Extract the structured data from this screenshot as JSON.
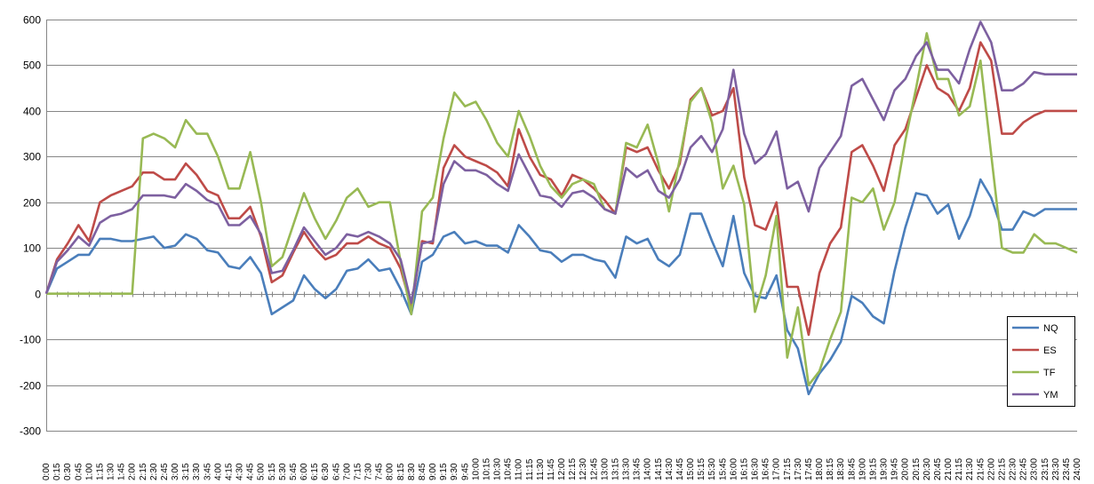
{
  "chart_data": {
    "type": "line",
    "title": "",
    "xlabel": "",
    "ylabel": "",
    "ylim": [
      -300,
      600
    ],
    "yticks": [
      -300,
      -200,
      -100,
      0,
      100,
      200,
      300,
      400,
      500,
      600
    ],
    "grid": "horizontal",
    "legend": "bottom-right",
    "x": [
      "0:00",
      "0:15",
      "0:30",
      "0:45",
      "1:00",
      "1:15",
      "1:30",
      "1:45",
      "2:00",
      "2:15",
      "2:30",
      "2:45",
      "3:00",
      "3:15",
      "3:30",
      "3:45",
      "4:00",
      "4:15",
      "4:30",
      "4:45",
      "5:00",
      "5:15",
      "5:30",
      "5:45",
      "6:00",
      "6:15",
      "6:30",
      "6:45",
      "7:00",
      "7:15",
      "7:30",
      "7:45",
      "8:00",
      "8:15",
      "8:30",
      "8:45",
      "9:00",
      "9:15",
      "9:30",
      "9:45",
      "10:00",
      "10:15",
      "10:30",
      "10:45",
      "11:00",
      "11:15",
      "11:30",
      "11:45",
      "12:00",
      "12:15",
      "12:30",
      "12:45",
      "13:00",
      "13:15",
      "13:30",
      "13:45",
      "14:00",
      "14:15",
      "14:30",
      "14:45",
      "15:00",
      "15:15",
      "15:30",
      "15:45",
      "16:00",
      "16:15",
      "16:30",
      "16:45",
      "17:00",
      "17:15",
      "17:30",
      "17:45",
      "18:00",
      "18:15",
      "18:30",
      "18:45",
      "19:00",
      "19:15",
      "19:30",
      "19:45",
      "20:00",
      "20:15",
      "20:30",
      "20:45",
      "21:00",
      "21:15",
      "21:30",
      "21:45",
      "22:00",
      "22:15",
      "22:30",
      "22:45",
      "23:00",
      "23:15",
      "23:30",
      "23:45",
      "24:00"
    ],
    "xlabels_shown": [
      "0:00",
      "0:15",
      "0:30",
      "0:45",
      "1:00",
      "1:15",
      "1:30",
      "1:45",
      "2:00",
      "2:15",
      "2:30",
      "2:45",
      "3:00",
      "3:15",
      "3:30",
      "3:45",
      "4:00",
      "4:15",
      "4:30",
      "4:45",
      "5:00",
      "5:15",
      "5:30",
      "5:45",
      "6:00",
      "6:15",
      "6:30",
      "6:45",
      "7:00",
      "7:15",
      "7:30",
      "7:45",
      "8:00",
      "8:15",
      "8:30",
      "8:45",
      "9:00",
      "9:15",
      "9:30",
      "9:45",
      "10:00",
      "10:15",
      "10:30",
      "10:45",
      "11:00",
      "11:15",
      "11:30",
      "11:45",
      "12:00",
      "12:15",
      "12:30",
      "12:45",
      "13:00",
      "13:15",
      "13:30",
      "13:45",
      "14:00",
      "14:15",
      "14:30",
      "14:45",
      "15:00",
      "15:15",
      "15:30",
      "15:45",
      "16:00",
      "16:15",
      "16:30",
      "16:45",
      "17:00",
      "17:15",
      "17:30",
      "17:45",
      "18:00",
      "18:15",
      "18:30",
      "18:45",
      "19:00",
      "19:15",
      "19:30",
      "19:45",
      "20:00",
      "20:15",
      "20:30",
      "20:45",
      "21:00",
      "21:15",
      "21:30",
      "21:45",
      "22:00",
      "22:15",
      "22:30",
      "22:45",
      "23:00",
      "23:15",
      "23:30",
      "23:45",
      "24:00"
    ],
    "series": [
      {
        "name": "NQ",
        "color": "#4a7ebb",
        "values": [
          0,
          55,
          70,
          85,
          85,
          120,
          120,
          115,
          115,
          120,
          125,
          100,
          105,
          130,
          120,
          95,
          90,
          60,
          55,
          80,
          45,
          -45,
          -30,
          -15,
          40,
          10,
          -10,
          10,
          50,
          55,
          75,
          50,
          55,
          10,
          -45,
          70,
          85,
          125,
          135,
          110,
          115,
          105,
          105,
          90,
          150,
          125,
          95,
          90,
          70,
          85,
          85,
          75,
          70,
          35,
          125,
          110,
          120,
          75,
          60,
          85,
          175,
          175,
          115,
          60,
          170,
          45,
          -5,
          -10,
          40,
          -80,
          -120,
          -220,
          -175,
          -145,
          -105,
          -5,
          -20,
          -50,
          -65,
          50,
          145,
          220,
          215,
          175,
          195,
          120,
          170,
          250,
          210,
          140,
          140,
          180,
          170,
          185,
          185,
          185,
          185
        ]
      },
      {
        "name": "ES",
        "color": "#be4b48",
        "values": [
          0,
          75,
          110,
          150,
          115,
          200,
          215,
          225,
          235,
          265,
          265,
          250,
          250,
          285,
          260,
          225,
          215,
          165,
          165,
          190,
          125,
          25,
          40,
          90,
          135,
          100,
          75,
          85,
          110,
          110,
          125,
          110,
          100,
          55,
          -30,
          115,
          110,
          275,
          325,
          300,
          290,
          280,
          265,
          235,
          360,
          300,
          260,
          250,
          215,
          260,
          250,
          230,
          205,
          175,
          320,
          310,
          320,
          270,
          230,
          285,
          425,
          450,
          390,
          400,
          450,
          255,
          150,
          140,
          200,
          15,
          15,
          -90,
          45,
          110,
          145,
          310,
          325,
          280,
          225,
          325,
          360,
          430,
          500,
          450,
          435,
          400,
          450,
          550,
          510,
          350,
          350,
          375,
          390,
          400,
          400,
          400,
          400
        ]
      },
      {
        "name": "TF",
        "color": "#98b954",
        "values": [
          0,
          0,
          0,
          0,
          0,
          0,
          0,
          0,
          0,
          340,
          350,
          340,
          320,
          380,
          350,
          350,
          300,
          230,
          230,
          310,
          200,
          60,
          80,
          150,
          220,
          165,
          120,
          160,
          210,
          230,
          190,
          200,
          200,
          70,
          -45,
          180,
          210,
          340,
          440,
          410,
          420,
          380,
          330,
          300,
          400,
          345,
          280,
          235,
          210,
          240,
          250,
          240,
          185,
          175,
          330,
          320,
          370,
          285,
          180,
          295,
          420,
          450,
          375,
          230,
          280,
          195,
          -40,
          40,
          170,
          -140,
          -30,
          -200,
          -170,
          -100,
          -40,
          210,
          200,
          230,
          140,
          200,
          335,
          450,
          570,
          470,
          470,
          390,
          410,
          510,
          305,
          100,
          90,
          90,
          130,
          110,
          110,
          100,
          90
        ]
      },
      {
        "name": "YM",
        "color": "#7d60a0",
        "values": [
          0,
          70,
          95,
          125,
          105,
          155,
          170,
          175,
          185,
          215,
          215,
          215,
          210,
          240,
          225,
          205,
          195,
          150,
          150,
          170,
          130,
          45,
          50,
          95,
          145,
          115,
          85,
          100,
          130,
          125,
          135,
          125,
          110,
          75,
          -20,
          110,
          115,
          240,
          290,
          270,
          270,
          260,
          240,
          225,
          305,
          260,
          215,
          210,
          190,
          220,
          225,
          210,
          185,
          175,
          275,
          255,
          270,
          225,
          210,
          250,
          320,
          345,
          310,
          360,
          490,
          350,
          285,
          305,
          355,
          230,
          245,
          180,
          275,
          310,
          345,
          455,
          470,
          425,
          380,
          445,
          470,
          520,
          550,
          490,
          490,
          460,
          535,
          595,
          550,
          445,
          445,
          460,
          485,
          480,
          480,
          480,
          480
        ]
      }
    ]
  }
}
